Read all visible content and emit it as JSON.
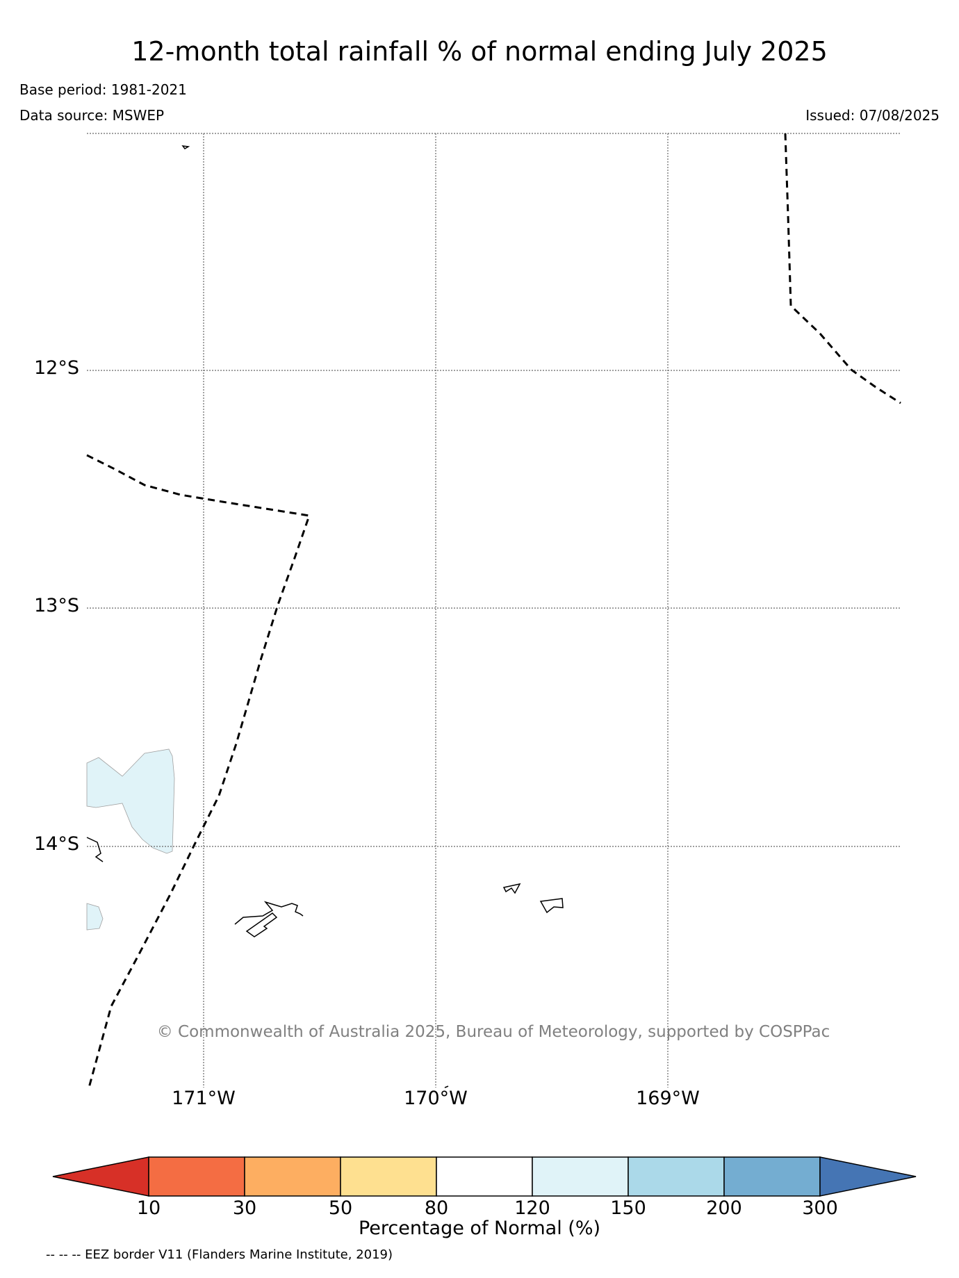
{
  "map": {
    "title": "12-month total rainfall % of normal ending July 2025",
    "base_period": "Base period: 1981-2021",
    "data_source": "Data source: MSWEP",
    "issued": "Issued: 07/08/2025",
    "lat_labels": [
      "12°S",
      "13°S",
      "14°S"
    ],
    "lon_labels": [
      "171°W",
      "170°W",
      "169°W"
    ],
    "copyright": "© Commonwealth of Australia 2025, Bureau of Meteorology, supported by COSPPac",
    "eez_note": "-- -- -- EEZ border V11 (Flanders Marine Institute, 2019)",
    "shaded_region_category": "120-150",
    "shaded_color": "#e0f3f8"
  },
  "colorbar": {
    "label": "Percentage of Normal (%)",
    "ticks": [
      "10",
      "30",
      "50",
      "80",
      "120",
      "150",
      "200",
      "300"
    ],
    "colors": [
      "#d73027",
      "#f46d43",
      "#fdae61",
      "#fee090",
      "#ffffff",
      "#e0f3f8",
      "#abd9e9",
      "#74add1",
      "#4575b4"
    ]
  }
}
